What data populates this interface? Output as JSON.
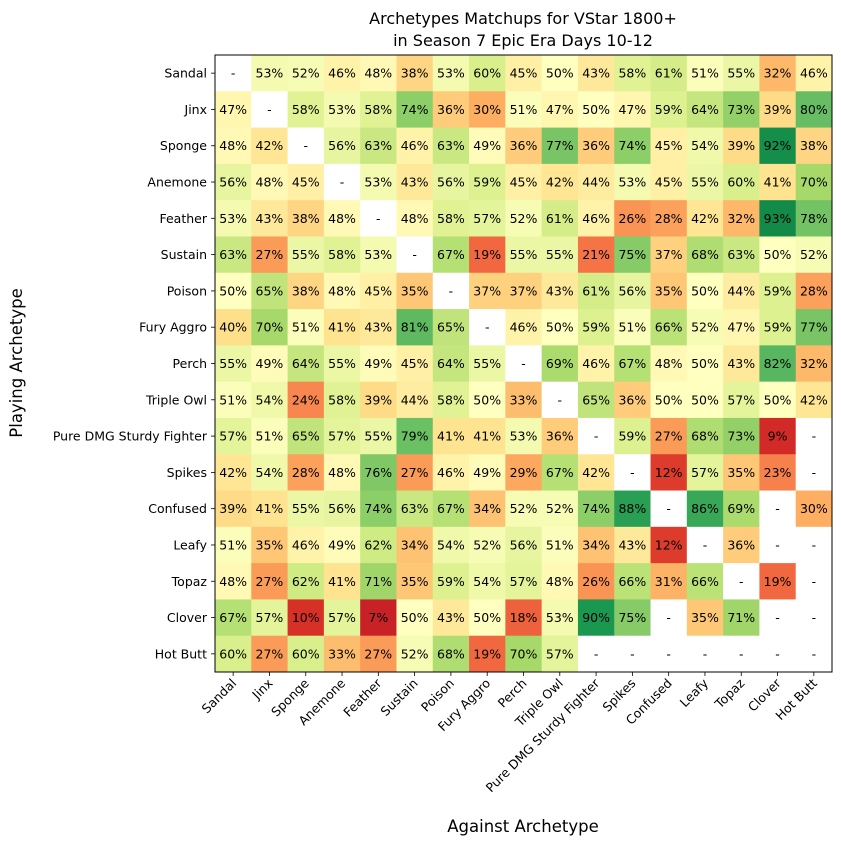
{
  "chart_data": {
    "type": "heatmap",
    "title": "Archetypes Matchups for VStar 1800+",
    "subtitle": "in Season 7 Epic Era Days 10-12",
    "xlabel": "Against Archetype",
    "ylabel": "Playing Archetype",
    "rows": [
      "Sandal",
      "Jinx",
      "Sponge",
      "Anemone",
      "Feather",
      "Sustain",
      "Poison",
      "Fury Aggro",
      "Perch",
      "Triple Owl",
      "Pure DMG Sturdy Fighter",
      "Spikes",
      "Confused",
      "Leafy",
      "Topaz",
      "Clover",
      "Hot Butt"
    ],
    "columns": [
      "Sandal",
      "Jinx",
      "Sponge",
      "Anemone",
      "Feather",
      "Sustain",
      "Poison",
      "Fury Aggro",
      "Perch",
      "Triple Owl",
      "Pure DMG Sturdy Fighter",
      "Spikes",
      "Confused",
      "Leafy",
      "Topaz",
      "Clover",
      "Hot Butt"
    ],
    "colormap": "RdYlGn",
    "vrange": [
      0,
      100
    ],
    "missing_label": "-",
    "value_suffix": "%",
    "values": [
      [
        null,
        53,
        52,
        46,
        48,
        38,
        53,
        60,
        45,
        50,
        43,
        58,
        61,
        51,
        55,
        32,
        46
      ],
      [
        47,
        null,
        58,
        53,
        58,
        74,
        36,
        30,
        51,
        47,
        50,
        47,
        59,
        64,
        73,
        39,
        80
      ],
      [
        48,
        42,
        null,
        56,
        63,
        46,
        63,
        49,
        36,
        77,
        36,
        74,
        45,
        54,
        39,
        92,
        38
      ],
      [
        56,
        48,
        45,
        null,
        53,
        43,
        56,
        59,
        45,
        42,
        44,
        53,
        45,
        55,
        60,
        41,
        70
      ],
      [
        53,
        43,
        38,
        48,
        null,
        48,
        58,
        57,
        52,
        61,
        46,
        26,
        28,
        42,
        32,
        93,
        78
      ],
      [
        63,
        27,
        55,
        58,
        53,
        null,
        67,
        19,
        55,
        55,
        21,
        75,
        37,
        68,
        63,
        50,
        52
      ],
      [
        50,
        65,
        38,
        48,
        45,
        35,
        null,
        37,
        37,
        43,
        61,
        56,
        35,
        50,
        44,
        59,
        28
      ],
      [
        40,
        70,
        51,
        41,
        43,
        81,
        65,
        null,
        46,
        50,
        59,
        51,
        66,
        52,
        47,
        59,
        77
      ],
      [
        55,
        49,
        64,
        55,
        49,
        45,
        64,
        55,
        null,
        69,
        46,
        67,
        48,
        50,
        43,
        82,
        32
      ],
      [
        51,
        54,
        24,
        58,
        39,
        44,
        58,
        50,
        33,
        null,
        65,
        36,
        50,
        50,
        57,
        50,
        42
      ],
      [
        57,
        51,
        65,
        57,
        55,
        79,
        41,
        41,
        53,
        36,
        null,
        59,
        27,
        68,
        73,
        9,
        null
      ],
      [
        42,
        54,
        28,
        48,
        76,
        27,
        46,
        49,
        29,
        67,
        42,
        null,
        12,
        57,
        35,
        23,
        null
      ],
      [
        39,
        41,
        55,
        56,
        74,
        63,
        67,
        34,
        52,
        52,
        74,
        88,
        null,
        86,
        69,
        null,
        30
      ],
      [
        51,
        35,
        46,
        49,
        62,
        34,
        54,
        52,
        56,
        51,
        34,
        43,
        12,
        null,
        36,
        null,
        null
      ],
      [
        48,
        27,
        62,
        41,
        71,
        35,
        59,
        54,
        57,
        48,
        26,
        66,
        31,
        66,
        null,
        19,
        null
      ],
      [
        67,
        57,
        10,
        57,
        7,
        50,
        43,
        50,
        18,
        53,
        90,
        75,
        null,
        35,
        71,
        null,
        null
      ],
      [
        60,
        27,
        60,
        33,
        27,
        52,
        68,
        19,
        70,
        57,
        null,
        null,
        null,
        null,
        null,
        null,
        null
      ]
    ]
  }
}
